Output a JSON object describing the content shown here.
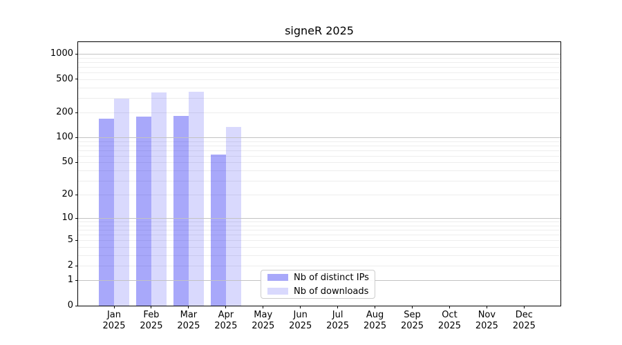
{
  "chart_data": {
    "type": "bar",
    "title": "signeR 2025",
    "x_categories": [
      "Jan",
      "Feb",
      "Mar",
      "Apr",
      "May",
      "Jun",
      "Jul",
      "Aug",
      "Sep",
      "Oct",
      "Nov",
      "Dec"
    ],
    "x_year_label": "2025",
    "y_scale": "log10(1+y)",
    "y_ticks": [
      0,
      1,
      2,
      5,
      10,
      20,
      50,
      100,
      200,
      500,
      1000
    ],
    "y_minor_gridlines": [
      2,
      3,
      4,
      5,
      6,
      7,
      8,
      9,
      20,
      30,
      40,
      50,
      60,
      70,
      80,
      90,
      200,
      300,
      400,
      500,
      600,
      700,
      800,
      900
    ],
    "y_major_gridlines": [
      1,
      10,
      100,
      1000
    ],
    "ylim": [
      0,
      1400
    ],
    "grid": "horizontal",
    "legend_position": "bottom-center-inside",
    "series": [
      {
        "name": "Nb of distinct IPs",
        "color": "rgba(0,0,240,0.34)",
        "values": [
          170,
          180,
          183,
          62,
          null,
          null,
          null,
          null,
          null,
          null,
          null,
          null
        ]
      },
      {
        "name": "Nb of downloads",
        "color": "rgba(0,0,240,0.15)",
        "values": [
          295,
          347,
          352,
          133,
          null,
          null,
          null,
          null,
          null,
          null,
          null,
          null
        ]
      }
    ]
  }
}
